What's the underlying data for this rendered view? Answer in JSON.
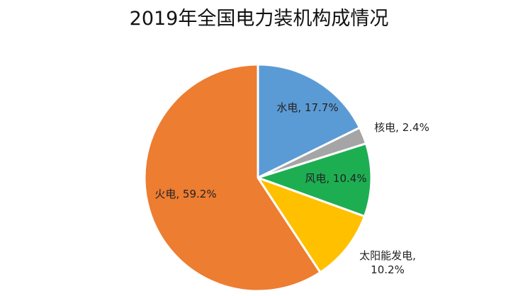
{
  "chart_data": {
    "type": "pie",
    "title": "2019年全国电力装机构成情况",
    "slices": [
      {
        "name": "水电",
        "value": 17.7,
        "label_lines": [
          "水电, 17.7%"
        ],
        "color": "#5b9bd5"
      },
      {
        "name": "核电",
        "value": 2.4,
        "label_lines": [
          "核电, 2.4%"
        ],
        "color": "#a5a5a5"
      },
      {
        "name": "风电",
        "value": 10.4,
        "label_lines": [
          "风电, 10.4%"
        ],
        "color": "#1eae52"
      },
      {
        "name": "太阳能发电",
        "value": 10.2,
        "label_lines": [
          "太阳能发电,",
          "10.2%"
        ],
        "color": "#ffc000"
      },
      {
        "name": "火电",
        "value": 59.2,
        "label_lines": [
          "火电, 59.2%"
        ],
        "color": "#ed7d31"
      }
    ],
    "start_direction": "top",
    "order": "clockwise",
    "legend": "none"
  }
}
